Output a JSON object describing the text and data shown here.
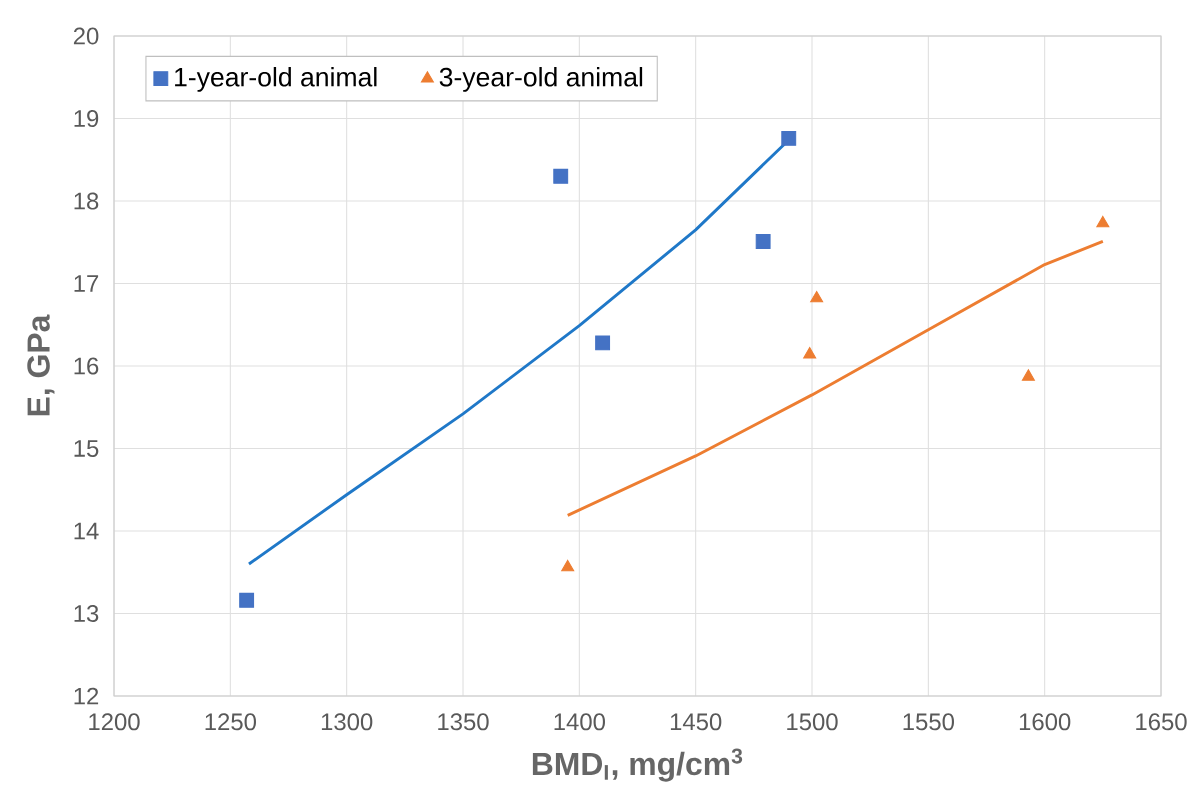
{
  "chart_data": {
    "type": "scatter",
    "xlabel": "BMD$_{I}$, mg/cm$^{3}$",
    "ylabel": "E, GPa",
    "xlim": [
      1200,
      1650
    ],
    "xticks": [
      1200,
      1250,
      1300,
      1350,
      1400,
      1450,
      1500,
      1550,
      1600,
      1650
    ],
    "ylim": [
      12,
      20
    ],
    "yticks": [
      12,
      13,
      14,
      15,
      16,
      17,
      18,
      19,
      20
    ],
    "grid": true,
    "legend": "top left",
    "series": [
      {
        "name": "1-year-old animal",
        "marker": "square",
        "color": "#4472c4",
        "x": [
          1257,
          1392,
          1410,
          1479,
          1490
        ],
        "values": [
          13.16,
          18.3,
          16.28,
          17.51,
          18.76
        ]
      },
      {
        "name": "3-year-old animal",
        "marker": "triangle",
        "color": "#ed7d31",
        "x": [
          1395,
          1499,
          1502,
          1593,
          1625
        ],
        "values": [
          13.56,
          16.14,
          16.82,
          15.87,
          17.73
        ]
      },
      {
        "type": "line",
        "marker": "none",
        "color": "#1f78c8",
        "x": [
          1258,
          1300,
          1350,
          1400,
          1450,
          1490
        ],
        "values": [
          13.6,
          14.44,
          15.42,
          16.49,
          17.65,
          18.74
        ]
      },
      {
        "type": "line",
        "marker": "none",
        "color": "#ed7d31",
        "x": [
          1395,
          1450,
          1500,
          1550,
          1600,
          1625
        ],
        "values": [
          14.19,
          14.91,
          15.65,
          16.44,
          17.23,
          17.51
        ]
      }
    ]
  }
}
